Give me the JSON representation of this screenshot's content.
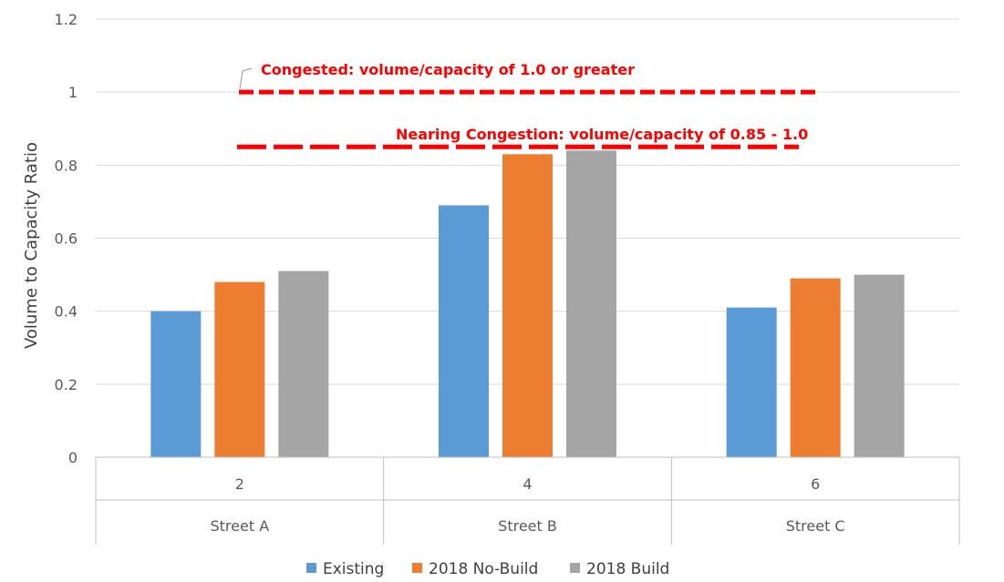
{
  "chart_data": {
    "type": "bar",
    "title": "",
    "ylabel": "Volume to Capacity Ratio",
    "xlabel": "",
    "ylim": [
      0,
      1.2
    ],
    "yticks": [
      0,
      0.2,
      0.4,
      0.6,
      0.8,
      1,
      1.2
    ],
    "ytick_labels": [
      "0",
      "0.2",
      "0.4",
      "0.6",
      "0.8",
      "1",
      "1.2"
    ],
    "grid": true,
    "categories": [
      {
        "sub": "2",
        "main": "Street A"
      },
      {
        "sub": "4",
        "main": "Street B"
      },
      {
        "sub": "6",
        "main": "Street C"
      }
    ],
    "series": [
      {
        "name": "Existing",
        "color": "#5b9bd5",
        "values": [
          0.4,
          0.69,
          0.41
        ]
      },
      {
        "name": "2018 No-Build",
        "color": "#ed7d31",
        "values": [
          0.48,
          0.83,
          0.49
        ]
      },
      {
        "name": "2018 Build",
        "color": "#a5a5a5",
        "values": [
          0.51,
          0.84,
          0.5
        ]
      }
    ],
    "legend_position": "bottom",
    "annotations": [
      {
        "text": "Congested:  volume/capacity of 1.0 or greater",
        "y": 1.0,
        "color": "#ff0000",
        "style": "dashed"
      },
      {
        "text": "Nearing Congestion: volume/capacity of 0.85 - 1.0",
        "y": 0.85,
        "color": "#ff0000",
        "style": "dashed"
      }
    ]
  }
}
